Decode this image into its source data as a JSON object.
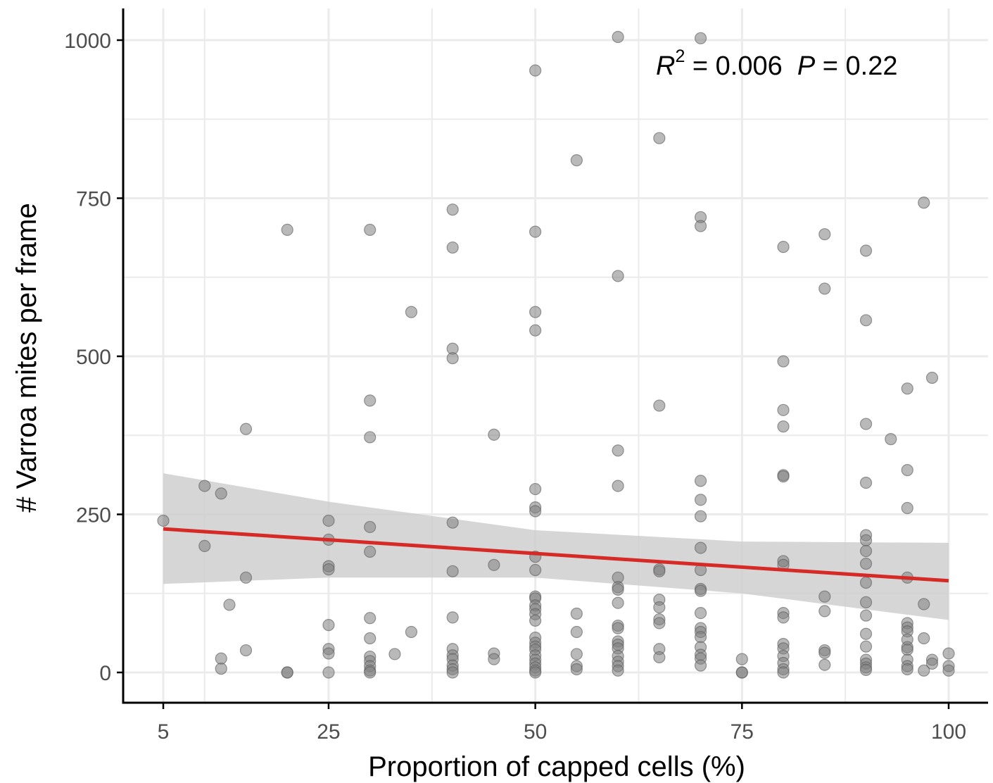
{
  "chart_data": {
    "type": "scatter",
    "xlabel": "Proportion of capped cells (%)",
    "ylabel": "# Varroa mites per frame",
    "xlim": [
      0,
      102
    ],
    "ylim": [
      -40,
      1045
    ],
    "x_ticks": [
      5,
      25,
      50,
      75,
      100
    ],
    "y_ticks": [
      0,
      250,
      500,
      750,
      1000
    ],
    "x_tick_labels": [
      "5",
      "25",
      "50",
      "75",
      "100"
    ],
    "y_tick_labels": [
      "0",
      "250",
      "500",
      "750",
      "1000"
    ],
    "x_minor_gridlines": [
      10,
      37.5,
      62.5,
      87.5
    ],
    "y_minor_gridlines": [
      125,
      375,
      625,
      875
    ],
    "grid": true,
    "annotation": {
      "r_label": "R",
      "r_exp": "2",
      "r_value": " = 0.006  ",
      "p_label": "P",
      "p_value": " = 0.22"
    },
    "colors": {
      "points": "#7f7f7f",
      "point_stroke": "#5a5a5a",
      "fit_line": "#d62a26",
      "confidence_band": "#cccccc",
      "grid": "#ebebeb",
      "axis": "#000000"
    },
    "fit": {
      "x": [
        5,
        100
      ],
      "y": [
        227,
        145
      ]
    },
    "confidence_band": {
      "x": [
        5,
        25,
        50,
        75,
        100
      ],
      "upper": [
        315,
        270,
        225,
        207,
        205
      ],
      "lower": [
        140,
        150,
        150,
        125,
        83
      ]
    },
    "points": [
      [
        5,
        240
      ],
      [
        10,
        295
      ],
      [
        10,
        200
      ],
      [
        12,
        283
      ],
      [
        12,
        22
      ],
      [
        12,
        6
      ],
      [
        13,
        107
      ],
      [
        15,
        385
      ],
      [
        15,
        150
      ],
      [
        15,
        35
      ],
      [
        20,
        700
      ],
      [
        20,
        0
      ],
      [
        20,
        0
      ],
      [
        25,
        240
      ],
      [
        25,
        210
      ],
      [
        25,
        168
      ],
      [
        25,
        163
      ],
      [
        25,
        75
      ],
      [
        25,
        37
      ],
      [
        25,
        30
      ],
      [
        25,
        0
      ],
      [
        30,
        700
      ],
      [
        30,
        430
      ],
      [
        30,
        372
      ],
      [
        30,
        230
      ],
      [
        30,
        191
      ],
      [
        30,
        86
      ],
      [
        30,
        54
      ],
      [
        30,
        25
      ],
      [
        30,
        18
      ],
      [
        30,
        10
      ],
      [
        30,
        3
      ],
      [
        30,
        0
      ],
      [
        33,
        29
      ],
      [
        35,
        570
      ],
      [
        35,
        64
      ],
      [
        40,
        732
      ],
      [
        40,
        672
      ],
      [
        40,
        512
      ],
      [
        40,
        497
      ],
      [
        40,
        237
      ],
      [
        40,
        160
      ],
      [
        40,
        87
      ],
      [
        40,
        37
      ],
      [
        40,
        27
      ],
      [
        40,
        21
      ],
      [
        40,
        11
      ],
      [
        40,
        5
      ],
      [
        40,
        0
      ],
      [
        45,
        376
      ],
      [
        45,
        170
      ],
      [
        45,
        30
      ],
      [
        45,
        21
      ],
      [
        50,
        952
      ],
      [
        50,
        697
      ],
      [
        50,
        570
      ],
      [
        50,
        541
      ],
      [
        50,
        290
      ],
      [
        50,
        261
      ],
      [
        50,
        255
      ],
      [
        50,
        183
      ],
      [
        50,
        162
      ],
      [
        50,
        120
      ],
      [
        50,
        117
      ],
      [
        50,
        106
      ],
      [
        50,
        100
      ],
      [
        50,
        92
      ],
      [
        50,
        82
      ],
      [
        50,
        55
      ],
      [
        50,
        47
      ],
      [
        50,
        41
      ],
      [
        50,
        36
      ],
      [
        50,
        27
      ],
      [
        50,
        20
      ],
      [
        50,
        14
      ],
      [
        50,
        8
      ],
      [
        50,
        3
      ],
      [
        50,
        0
      ],
      [
        55,
        810
      ],
      [
        55,
        93
      ],
      [
        55,
        64
      ],
      [
        55,
        29
      ],
      [
        55,
        10
      ],
      [
        55,
        5
      ],
      [
        60,
        1005
      ],
      [
        60,
        627
      ],
      [
        60,
        351
      ],
      [
        60,
        295
      ],
      [
        60,
        150
      ],
      [
        60,
        135
      ],
      [
        60,
        131
      ],
      [
        60,
        110
      ],
      [
        60,
        74
      ],
      [
        60,
        70
      ],
      [
        60,
        49
      ],
      [
        60,
        44
      ],
      [
        60,
        38
      ],
      [
        60,
        26
      ],
      [
        60,
        17
      ],
      [
        60,
        10
      ],
      [
        60,
        3
      ],
      [
        65,
        845
      ],
      [
        65,
        422
      ],
      [
        65,
        163
      ],
      [
        65,
        160
      ],
      [
        65,
        115
      ],
      [
        65,
        103
      ],
      [
        65,
        84
      ],
      [
        65,
        78
      ],
      [
        65,
        37
      ],
      [
        65,
        24
      ],
      [
        70,
        1003
      ],
      [
        70,
        720
      ],
      [
        70,
        706
      ],
      [
        70,
        303
      ],
      [
        70,
        273
      ],
      [
        70,
        247
      ],
      [
        70,
        197
      ],
      [
        70,
        162
      ],
      [
        70,
        132
      ],
      [
        70,
        129
      ],
      [
        70,
        94
      ],
      [
        70,
        70
      ],
      [
        70,
        64
      ],
      [
        70,
        56
      ],
      [
        70,
        40
      ],
      [
        70,
        28
      ],
      [
        70,
        22
      ],
      [
        70,
        11
      ],
      [
        75,
        21
      ],
      [
        75,
        0
      ],
      [
        75,
        0
      ],
      [
        80,
        673
      ],
      [
        80,
        492
      ],
      [
        80,
        415
      ],
      [
        80,
        389
      ],
      [
        80,
        312
      ],
      [
        80,
        310
      ],
      [
        80,
        176
      ],
      [
        80,
        170
      ],
      [
        80,
        94
      ],
      [
        80,
        87
      ],
      [
        80,
        45
      ],
      [
        80,
        38
      ],
      [
        80,
        26
      ],
      [
        80,
        15
      ],
      [
        80,
        5
      ],
      [
        80,
        0
      ],
      [
        85,
        693
      ],
      [
        85,
        607
      ],
      [
        85,
        120
      ],
      [
        85,
        97
      ],
      [
        85,
        35
      ],
      [
        85,
        31
      ],
      [
        85,
        12
      ],
      [
        90,
        667
      ],
      [
        90,
        557
      ],
      [
        90,
        393
      ],
      [
        90,
        300
      ],
      [
        90,
        217
      ],
      [
        90,
        209
      ],
      [
        90,
        192
      ],
      [
        90,
        172
      ],
      [
        90,
        142
      ],
      [
        90,
        111
      ],
      [
        90,
        90
      ],
      [
        90,
        61
      ],
      [
        90,
        41
      ],
      [
        90,
        20
      ],
      [
        90,
        14
      ],
      [
        90,
        8
      ],
      [
        90,
        4
      ],
      [
        93,
        369
      ],
      [
        95,
        449
      ],
      [
        95,
        320
      ],
      [
        95,
        260
      ],
      [
        95,
        150
      ],
      [
        95,
        78
      ],
      [
        95,
        71
      ],
      [
        95,
        65
      ],
      [
        95,
        52
      ],
      [
        95,
        40
      ],
      [
        95,
        36
      ],
      [
        95,
        20
      ],
      [
        95,
        10
      ],
      [
        95,
        5
      ],
      [
        97,
        743
      ],
      [
        97,
        108
      ],
      [
        97,
        54
      ],
      [
        97,
        3
      ],
      [
        98,
        466
      ],
      [
        98,
        20
      ],
      [
        98,
        14
      ],
      [
        100,
        30
      ],
      [
        100,
        10
      ],
      [
        100,
        3
      ]
    ]
  }
}
